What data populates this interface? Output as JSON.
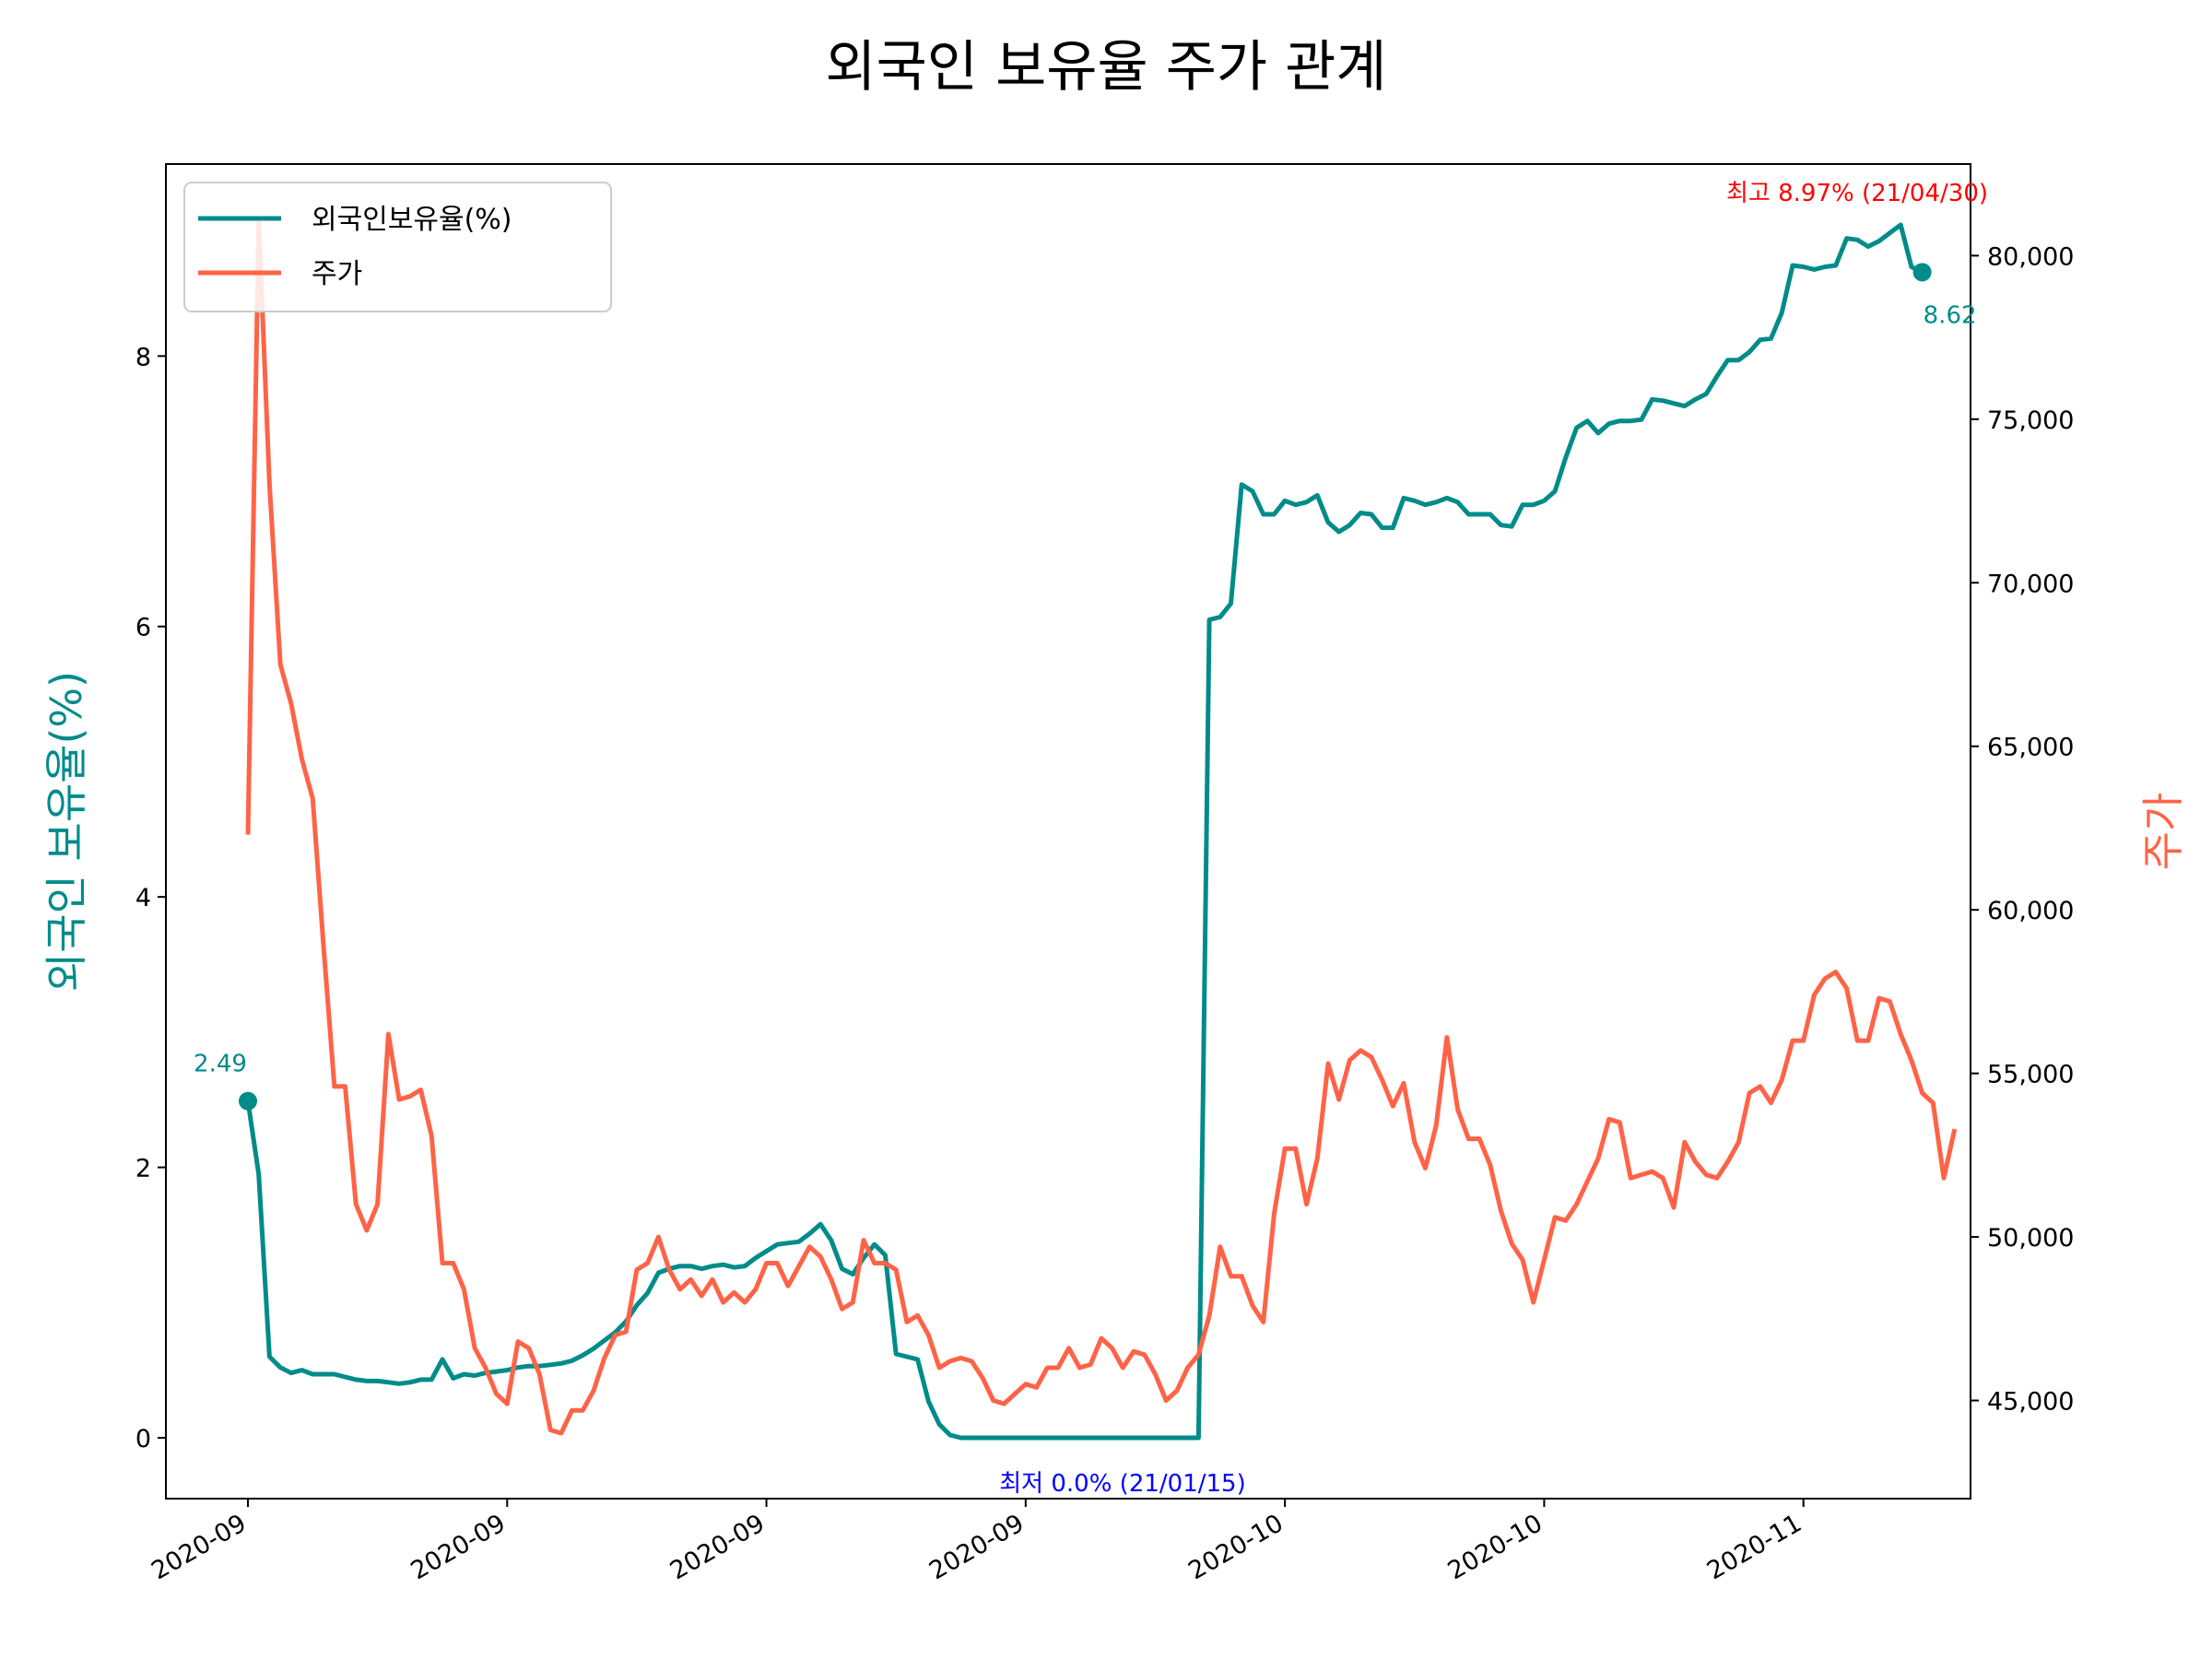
{
  "chart_data": {
    "type": "line",
    "title": "외국인 보유율 주가 관계",
    "ylabel_left": "외국인 보유율(%)",
    "ylabel_right": "주가",
    "ylim_left": [
      -0.45,
      9.42
    ],
    "ylim_right": [
      42000,
      82800
    ],
    "left_ticks": [
      "0",
      "2",
      "4",
      "6",
      "8"
    ],
    "right_ticks": [
      "45,000",
      "50,000",
      "55,000",
      "60,000",
      "65,000",
      "70,000",
      "75,000",
      "80,000"
    ],
    "x_tick_labels": [
      "2020-09",
      "2020-09",
      "2020-09",
      "2020-09",
      "2020-10",
      "2020-10",
      "2020-11"
    ],
    "grid": false,
    "legend_position": "top-left",
    "series": [
      {
        "name": "외국인보유율(%)",
        "axis": "left",
        "color": "#008B8B",
        "values": [
          2.49,
          1.95,
          0.6,
          0.52,
          0.48,
          0.5,
          0.47,
          0.47,
          0.47,
          0.45,
          0.43,
          0.42,
          0.42,
          0.41,
          0.4,
          0.41,
          0.43,
          0.43,
          0.58,
          0.44,
          0.47,
          0.46,
          0.48,
          0.49,
          0.5,
          0.52,
          0.53,
          0.53,
          0.54,
          0.55,
          0.57,
          0.61,
          0.66,
          0.72,
          0.78,
          0.86,
          0.98,
          1.07,
          1.22,
          1.25,
          1.27,
          1.27,
          1.25,
          1.27,
          1.28,
          1.26,
          1.27,
          1.33,
          1.38,
          1.43,
          1.44,
          1.45,
          1.51,
          1.58,
          1.46,
          1.25,
          1.21,
          1.33,
          1.43,
          1.35,
          0.62,
          0.6,
          0.58,
          0.27,
          0.1,
          0.02,
          0.0,
          0.0,
          0.0,
          0.0,
          0.0,
          0.0,
          0.0,
          0.0,
          0.0,
          0.0,
          0.0,
          0.0,
          0.0,
          0.0,
          0.0,
          0.0,
          0.0,
          0.0,
          0.0,
          0.0,
          0.0,
          0.0,
          0.0,
          6.05,
          6.07,
          6.17,
          7.05,
          7.0,
          6.83,
          6.83,
          6.93,
          6.9,
          6.92,
          6.97,
          6.77,
          6.7,
          6.75,
          6.84,
          6.83,
          6.73,
          6.73,
          6.95,
          6.93,
          6.9,
          6.92,
          6.95,
          6.92,
          6.83,
          6.83,
          6.83,
          6.75,
          6.74,
          6.9,
          6.9,
          6.93,
          7.0,
          7.25,
          7.47,
          7.52,
          7.43,
          7.5,
          7.52,
          7.52,
          7.53,
          7.68,
          7.67,
          7.65,
          7.63,
          7.68,
          7.72,
          7.85,
          7.97,
          7.97,
          8.03,
          8.12,
          8.13,
          8.32,
          8.67,
          8.66,
          8.64,
          8.66,
          8.67,
          8.87,
          8.86,
          8.81,
          8.85,
          8.91,
          8.97,
          8.66,
          8.62
        ]
      },
      {
        "name": "주가",
        "axis": "right",
        "color": "#FF6347",
        "values": [
          62300,
          81100,
          73000,
          67500,
          66300,
          64600,
          63400,
          58900,
          54600,
          54600,
          51000,
          50200,
          51000,
          56200,
          54200,
          54300,
          54500,
          53100,
          49200,
          49200,
          48400,
          46600,
          46000,
          45200,
          44900,
          46800,
          46600,
          45800,
          44100,
          44000,
          44700,
          44700,
          45300,
          46300,
          47000,
          47100,
          49000,
          49200,
          50000,
          49000,
          48400,
          48700,
          48200,
          48700,
          48000,
          48300,
          48000,
          48400,
          49200,
          49200,
          48500,
          49100,
          49700,
          49400,
          48700,
          47800,
          48000,
          49900,
          49200,
          49200,
          49000,
          47400,
          47600,
          47000,
          46000,
          46200,
          46300,
          46200,
          45700,
          45000,
          44900,
          45200,
          45500,
          45400,
          46000,
          46000,
          46600,
          46000,
          46100,
          46900,
          46600,
          46000,
          46500,
          46400,
          45800,
          45000,
          45300,
          46000,
          46400,
          47600,
          49700,
          48800,
          48800,
          47900,
          47400,
          50700,
          52700,
          52700,
          51000,
          52400,
          55300,
          54200,
          55400,
          55700,
          55500,
          54800,
          54000,
          54700,
          52900,
          52100,
          53400,
          56100,
          53900,
          53000,
          53000,
          52200,
          50800,
          49800,
          49300,
          48000,
          49300,
          50600,
          50500,
          51000,
          51700,
          52400,
          53600,
          53500,
          51800,
          51900,
          52000,
          51800,
          50900,
          52900,
          52300,
          51900,
          51800,
          52300,
          52900,
          54400,
          54600,
          54100,
          54800,
          56000,
          56000,
          57400,
          57900,
          58100,
          57600,
          56000,
          56000,
          57300,
          57200,
          56200,
          55400,
          54400,
          54100,
          51800,
          53300
        ]
      }
    ],
    "annotations": {
      "start_label": "2.49",
      "end_label": "8.62",
      "max_label": "최고 8.97% (21/04/30)",
      "min_label": "최저 0.0% (21/01/15)"
    }
  }
}
